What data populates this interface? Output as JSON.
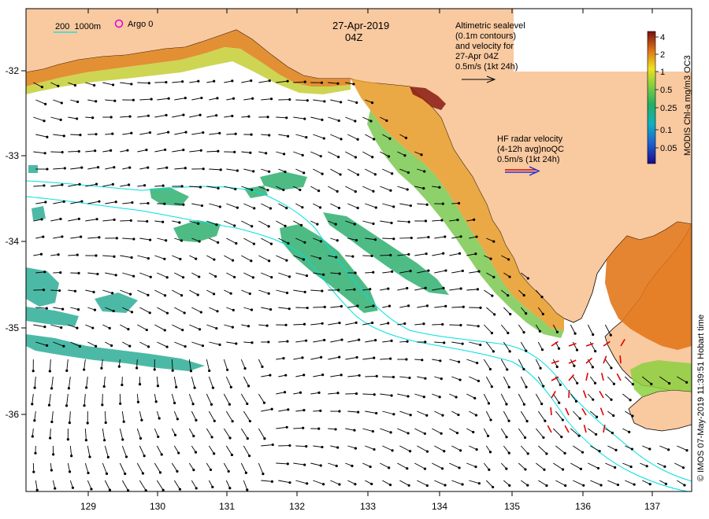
{
  "header": {
    "date": "27-Apr-2019",
    "time": "04Z"
  },
  "legend": {
    "depth_contours": "200  1000m",
    "argo": "Argo 0",
    "altimetric_lines": [
      "Altimetric sealevel",
      "(0.1m contours)",
      "and velocity for",
      "27-Apr 04Z",
      "0.5m/s (1kt 24h)"
    ],
    "hf_radar_lines": [
      "HF radar velocity",
      "(4-12h avg)noQC",
      "0.5m/s (1kt 24h)"
    ]
  },
  "colorbar": {
    "title": "MODIS Chl-a mg/m3 OC3",
    "ticks": [
      "4",
      "2",
      "1",
      "0.5",
      "0.25",
      "0.1",
      "0.05"
    ]
  },
  "axes": {
    "x_ticks": [
      "129",
      "130",
      "131",
      "132",
      "133",
      "134",
      "135",
      "136",
      "137"
    ],
    "y_ticks": [
      "-32",
      "-33",
      "-34",
      "-35",
      "-36"
    ]
  },
  "credit": "© IMOS 07-May-2019 11:39:51 Hobart time",
  "colors": {
    "land": "#f9c9a0",
    "ocean": "#ffffff",
    "contour": "#00e0e0",
    "hf_radar": "#e00000",
    "arrow": "#000000"
  }
}
